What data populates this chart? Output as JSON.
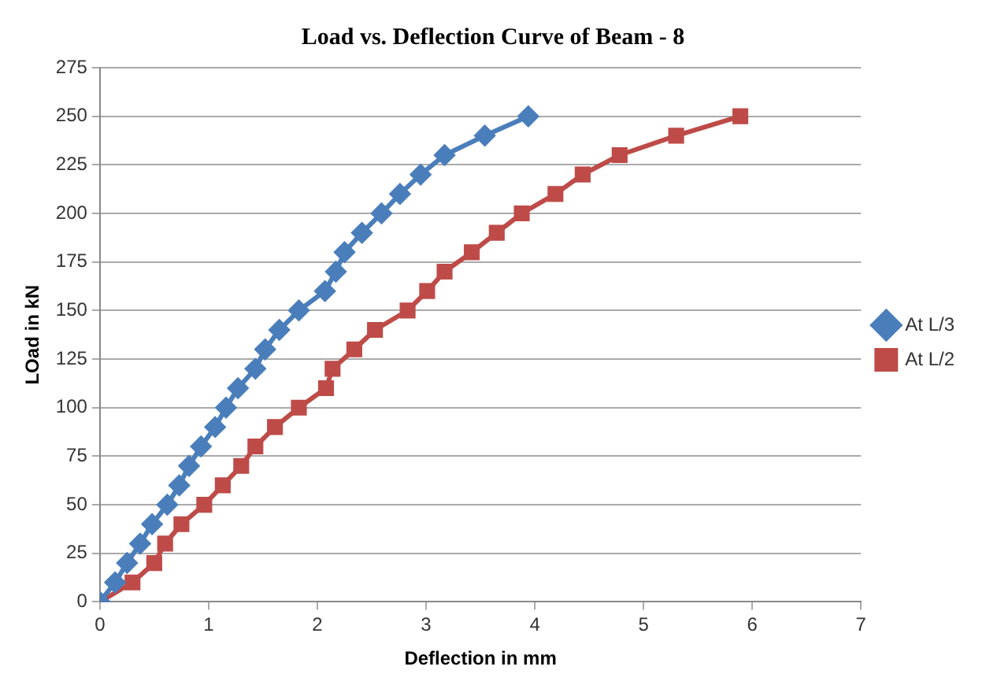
{
  "chart_data": {
    "type": "line",
    "title": "Load vs. Deflection Curve of Beam - 8",
    "xlabel": "Deflection in mm",
    "ylabel": "LOad in kN",
    "xlim": [
      0,
      7
    ],
    "xticks": [
      0,
      1,
      2,
      3,
      4,
      5,
      6,
      7
    ],
    "ylim": [
      0,
      275
    ],
    "yticks": [
      0,
      25,
      50,
      75,
      100,
      125,
      150,
      175,
      200,
      225,
      250,
      275
    ],
    "grid": "y",
    "legend": "right",
    "series": [
      {
        "name": "At L/3",
        "color": "#4a7ebb",
        "marker": "diamond",
        "x": [
          0,
          0.14,
          0.25,
          0.37,
          0.48,
          0.62,
          0.73,
          0.82,
          0.93,
          1.06,
          1.16,
          1.27,
          1.43,
          1.52,
          1.65,
          1.83,
          2.07,
          2.17,
          2.25,
          2.41,
          2.59,
          2.76,
          2.95,
          3.17,
          3.54,
          3.94
        ],
        "values": [
          0,
          10,
          20,
          30,
          40,
          50,
          60,
          70,
          80,
          90,
          100,
          110,
          120,
          130,
          140,
          150,
          160,
          170,
          180,
          190,
          200,
          210,
          220,
          230,
          240,
          250
        ]
      },
      {
        "name": "At L/2",
        "color": "#be4b48",
        "marker": "square",
        "x": [
          0,
          0.3,
          0.5,
          0.6,
          0.75,
          0.96,
          1.13,
          1.3,
          1.43,
          1.61,
          1.83,
          2.08,
          2.14,
          2.34,
          2.53,
          2.83,
          3.01,
          3.17,
          3.42,
          3.65,
          3.88,
          4.19,
          4.44,
          4.78,
          5.3,
          5.89
        ],
        "values": [
          0,
          10,
          20,
          30,
          40,
          50,
          60,
          70,
          80,
          90,
          100,
          110,
          120,
          130,
          140,
          150,
          160,
          170,
          180,
          190,
          200,
          210,
          220,
          230,
          240,
          250
        ]
      }
    ]
  }
}
